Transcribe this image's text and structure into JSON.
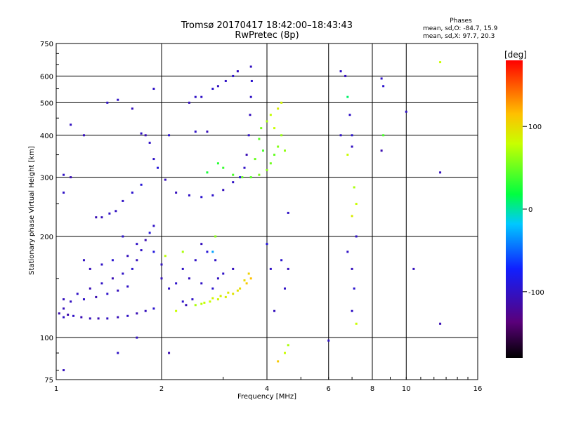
{
  "chart_data": {
    "type": "scatter",
    "title": "Tromsø 20170417 18:42:00–18:43:43",
    "subtitle": "RwPretec (8p)",
    "xlabel": "Frequency [MHz]",
    "ylabel": "Stationary phase Virtual Height [km]",
    "xscale": "log",
    "yscale": "log",
    "xlim": [
      1,
      16
    ],
    "ylim": [
      75,
      750
    ],
    "xticks": [
      1,
      2,
      4,
      6,
      8,
      10,
      16
    ],
    "xticklabels": [
      "1",
      "2",
      "4",
      "6",
      "8",
      "10",
      "16"
    ],
    "yticks": [
      75,
      100,
      200,
      300,
      400,
      500,
      600,
      750
    ],
    "yticklabels": [
      "75",
      "100",
      "200",
      "300",
      "400",
      "500",
      "600",
      "750"
    ],
    "grid": true,
    "info": {
      "heading": "Phases",
      "line1": "mean, sd,O: -84.7, 15.9",
      "line2": "mean, sd,X:  97.7, 20.3"
    },
    "colorbar": {
      "label": "[deg]",
      "range": [
        -180,
        180
      ],
      "ticks": [
        -100,
        0,
        100
      ],
      "ticklabels": [
        "-100",
        "0",
        "100"
      ],
      "colors": [
        "#000000",
        "#5a007a",
        "#1020ff",
        "#00c8ff",
        "#00ff40",
        "#c8ff00",
        "#ffc000",
        "#ff0000"
      ]
    },
    "series": [
      {
        "points": [
          [
            1.02,
            118,
            -110
          ],
          [
            1.05,
            122,
            -105
          ],
          [
            1.08,
            117,
            -112
          ],
          [
            1.12,
            116,
            -100
          ],
          [
            1.18,
            115,
            -108
          ],
          [
            1.25,
            114,
            -104
          ],
          [
            1.32,
            114,
            -110
          ],
          [
            1.4,
            114,
            -102
          ],
          [
            1.5,
            115,
            -106
          ],
          [
            1.6,
            116,
            -100
          ],
          [
            1.7,
            118,
            -108
          ],
          [
            1.8,
            120,
            -104
          ],
          [
            1.9,
            122,
            -96
          ],
          [
            1.1,
            128,
            -102
          ],
          [
            1.2,
            130,
            -100
          ],
          [
            1.3,
            132,
            -110
          ],
          [
            1.4,
            135,
            -98
          ],
          [
            1.5,
            138,
            -104
          ],
          [
            1.6,
            142,
            -100
          ],
          [
            1.45,
            150,
            -108
          ],
          [
            1.55,
            155,
            -100
          ],
          [
            1.65,
            160,
            -96
          ],
          [
            1.7,
            170,
            -104
          ],
          [
            1.75,
            182,
            -100
          ],
          [
            1.8,
            195,
            -110
          ],
          [
            1.85,
            205,
            -92
          ],
          [
            1.9,
            215,
            -100
          ],
          [
            1.6,
            175,
            -104
          ],
          [
            1.7,
            190,
            -100
          ],
          [
            1.55,
            200,
            -98
          ],
          [
            1.9,
            180,
            -88
          ],
          [
            2.0,
            165,
            -102
          ],
          [
            1.35,
            145,
            -100
          ],
          [
            1.25,
            140,
            -108
          ],
          [
            1.15,
            135,
            -100
          ],
          [
            1.05,
            130,
            -104
          ],
          [
            1.25,
            160,
            -106
          ],
          [
            1.35,
            165,
            -100
          ],
          [
            1.45,
            170,
            -95
          ],
          [
            1.3,
            228,
            -108
          ],
          [
            1.35,
            228,
            -104
          ],
          [
            1.42,
            234,
            -100
          ],
          [
            1.48,
            238,
            -102
          ],
          [
            1.55,
            255,
            -100
          ],
          [
            1.65,
            270,
            -96
          ],
          [
            1.75,
            285,
            -92
          ],
          [
            1.05,
            305,
            -100
          ],
          [
            1.1,
            300,
            -108
          ],
          [
            2.2,
            270,
            -104
          ],
          [
            2.4,
            265,
            -100
          ],
          [
            2.6,
            262,
            -96
          ],
          [
            2.8,
            265,
            -98
          ],
          [
            3.0,
            275,
            -104
          ],
          [
            3.2,
            290,
            -100
          ],
          [
            3.35,
            300,
            -92
          ],
          [
            3.45,
            320,
            -100
          ],
          [
            3.5,
            350,
            -108
          ],
          [
            3.55,
            400,
            -100
          ],
          [
            3.58,
            460,
            -104
          ],
          [
            3.6,
            520,
            -100
          ],
          [
            3.62,
            580,
            -96
          ],
          [
            3.6,
            640,
            -102
          ],
          [
            1.9,
            340,
            -100
          ],
          [
            1.95,
            320,
            -90
          ],
          [
            2.05,
            295,
            -104
          ],
          [
            1.85,
            380,
            -100
          ],
          [
            1.8,
            400,
            -108
          ],
          [
            1.75,
            405,
            -100
          ],
          [
            2.4,
            500,
            -104
          ],
          [
            2.6,
            520,
            -100
          ],
          [
            2.8,
            550,
            -96
          ],
          [
            2.9,
            560,
            -102
          ],
          [
            3.05,
            580,
            -100
          ],
          [
            3.2,
            600,
            -98
          ],
          [
            3.3,
            620,
            -104
          ],
          [
            2.5,
            410,
            -100
          ],
          [
            2.7,
            410,
            -106
          ],
          [
            2.5,
            520,
            -100
          ],
          [
            2.3,
            160,
            -100
          ],
          [
            2.4,
            150,
            -104
          ],
          [
            2.6,
            145,
            -100
          ],
          [
            2.8,
            140,
            -96
          ],
          [
            2.9,
            150,
            -102
          ],
          [
            3.0,
            155,
            -100
          ],
          [
            3.2,
            160,
            -104
          ],
          [
            2.2,
            145,
            -98
          ],
          [
            2.5,
            170,
            -100
          ],
          [
            2.7,
            180,
            -92
          ],
          [
            2.85,
            170,
            -100
          ],
          [
            2.6,
            190,
            -104
          ],
          [
            2.45,
            130,
            -100
          ],
          [
            2.35,
            125,
            -106
          ],
          [
            2.3,
            128,
            -98
          ],
          [
            2.1,
            140,
            -100
          ],
          [
            2.0,
            150,
            -104
          ],
          [
            3.0,
            320,
            35
          ],
          [
            3.2,
            305,
            40
          ],
          [
            3.4,
            300,
            50
          ],
          [
            3.6,
            300,
            45
          ],
          [
            3.8,
            305,
            55
          ],
          [
            4.0,
            315,
            60
          ],
          [
            4.1,
            330,
            52
          ],
          [
            4.2,
            350,
            48
          ],
          [
            4.3,
            370,
            58
          ],
          [
            4.4,
            400,
            65
          ],
          [
            4.2,
            420,
            80
          ],
          [
            4.1,
            460,
            78
          ],
          [
            4.3,
            480,
            90
          ],
          [
            4.4,
            500,
            85
          ],
          [
            3.9,
            360,
            40
          ],
          [
            3.8,
            390,
            45
          ],
          [
            3.7,
            340,
            50
          ],
          [
            3.85,
            420,
            55
          ],
          [
            4.0,
            440,
            70
          ],
          [
            4.5,
            360,
            62
          ],
          [
            2.9,
            330,
            30
          ],
          [
            2.7,
            310,
            25
          ],
          [
            2.5,
            125,
            70
          ],
          [
            2.6,
            126,
            75
          ],
          [
            2.75,
            128,
            80
          ],
          [
            2.9,
            130,
            85
          ],
          [
            3.05,
            132,
            90
          ],
          [
            3.2,
            135,
            95
          ],
          [
            3.35,
            140,
            100
          ],
          [
            3.5,
            145,
            110
          ],
          [
            3.6,
            150,
            115
          ],
          [
            3.55,
            155,
            105
          ],
          [
            3.45,
            148,
            100
          ],
          [
            3.3,
            138,
            96
          ],
          [
            3.1,
            136,
            92
          ],
          [
            2.95,
            133,
            88
          ],
          [
            2.8,
            131,
            84
          ],
          [
            2.65,
            127,
            78
          ],
          [
            2.2,
            120,
            80
          ],
          [
            2.3,
            180,
            70
          ],
          [
            2.05,
            175,
            75
          ],
          [
            2.8,
            180,
            -30
          ],
          [
            2.85,
            200,
            60
          ],
          [
            6.5,
            620,
            -100
          ],
          [
            6.7,
            600,
            -104
          ],
          [
            6.8,
            520,
            10
          ],
          [
            6.9,
            460,
            -100
          ],
          [
            7.0,
            400,
            -96
          ],
          [
            7.0,
            370,
            -102
          ],
          [
            6.8,
            350,
            80
          ],
          [
            6.5,
            400,
            -100
          ],
          [
            7.1,
            280,
            70
          ],
          [
            7.2,
            250,
            80
          ],
          [
            7.0,
            230,
            90
          ],
          [
            7.2,
            200,
            -100
          ],
          [
            6.8,
            180,
            -100
          ],
          [
            7.0,
            160,
            -104
          ],
          [
            7.1,
            140,
            -96
          ],
          [
            7.0,
            120,
            -100
          ],
          [
            7.2,
            110,
            80
          ],
          [
            8.5,
            590,
            -100
          ],
          [
            8.6,
            560,
            -96
          ],
          [
            8.5,
            360,
            -110
          ],
          [
            10.0,
            470,
            -100
          ],
          [
            12.5,
            310,
            -104
          ],
          [
            12.5,
            110,
            -108
          ],
          [
            12.5,
            660,
            80
          ],
          [
            10.5,
            160,
            -104
          ],
          [
            8.6,
            400,
            40
          ],
          [
            4.6,
            235,
            -100
          ],
          [
            4.6,
            160,
            -104
          ],
          [
            4.5,
            140,
            -100
          ],
          [
            4.6,
            95,
            70
          ],
          [
            4.3,
            85,
            110
          ],
          [
            4.5,
            90,
            80
          ],
          [
            4.0,
            190,
            -90
          ],
          [
            4.1,
            160,
            -100
          ],
          [
            4.4,
            170,
            -96
          ],
          [
            4.2,
            120,
            -104
          ],
          [
            6.0,
            98,
            -100
          ],
          [
            1.5,
            90,
            -100
          ],
          [
            1.7,
            100,
            -102
          ],
          [
            2.1,
            90,
            -110
          ],
          [
            1.05,
            80,
            -104
          ],
          [
            1.05,
            115,
            -100
          ],
          [
            1.5,
            510,
            -100
          ],
          [
            1.65,
            480,
            -104
          ],
          [
            1.9,
            550,
            -100
          ],
          [
            2.1,
            400,
            -96
          ],
          [
            1.2,
            400,
            -104
          ],
          [
            1.05,
            270,
            -100
          ],
          [
            1.2,
            170,
            -102
          ],
          [
            1.4,
            500,
            -100
          ],
          [
            1.1,
            430,
            -102
          ]
        ]
      }
    ]
  }
}
